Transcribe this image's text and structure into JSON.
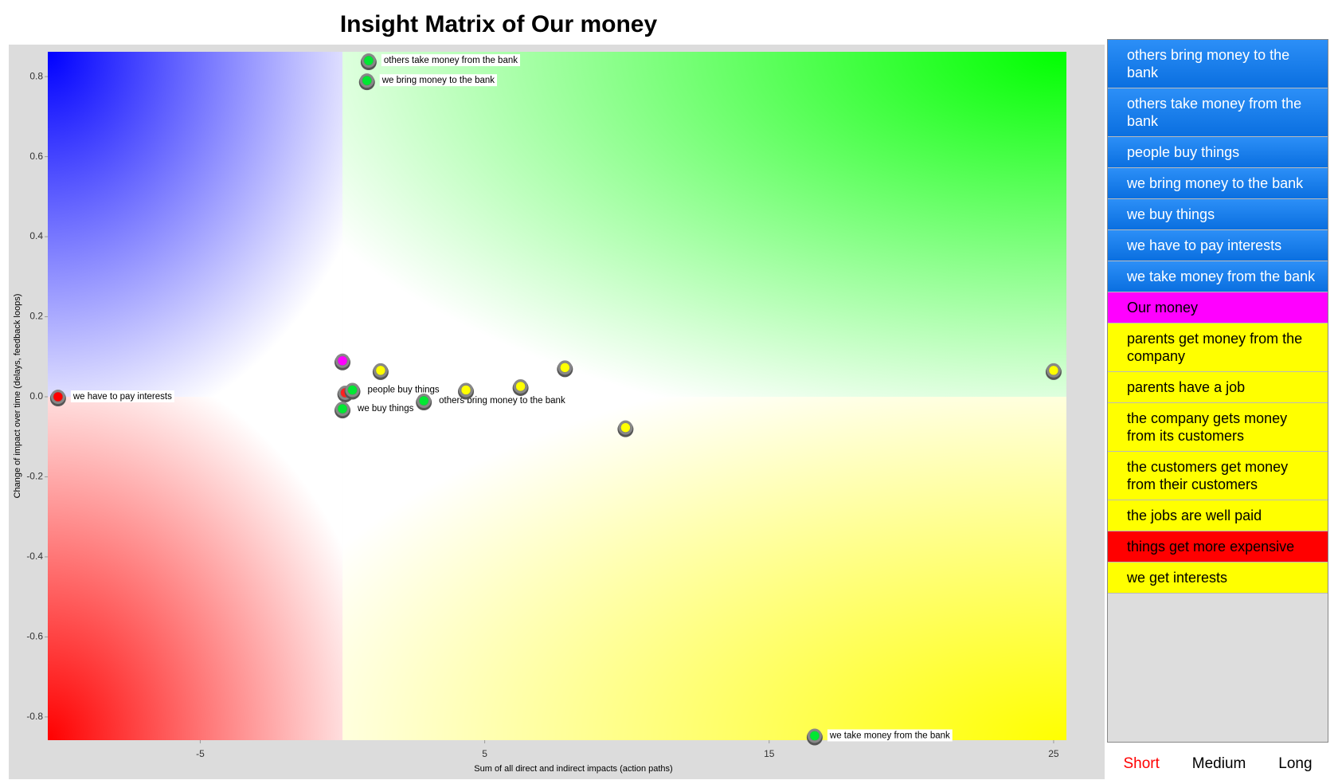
{
  "chart_data": {
    "type": "scatter",
    "title": "Insight Matrix of Our money",
    "xlabel": "Sum of all direct and indirect impacts (action paths)",
    "ylabel": "Change of impact over time (delays, feedback loops)",
    "xlim": [
      -10.36,
      25.45
    ],
    "ylim": [
      -0.858,
      0.862
    ],
    "xticks": [
      -5,
      5,
      15,
      25
    ],
    "yticks": [
      -0.8,
      -0.6,
      -0.4,
      -0.2,
      {
        "value": 0,
        "label": "0.0"
      },
      0.2,
      0.4,
      0.6,
      0.8
    ],
    "points": [
      {
        "x": -10,
        "y": 0,
        "color": "#ff0000",
        "label": "we have to pay interests"
      },
      {
        "x": 0,
        "y": 0.09,
        "color": "#ff00ff"
      },
      {
        "x": 0.1,
        "y": 0.01,
        "color": "#ff2020"
      },
      {
        "x": 0.35,
        "y": 0.017,
        "color": "#00e832",
        "label": "people buy things"
      },
      {
        "x": 0,
        "y": -0.03,
        "color": "#00e832",
        "label": "we buy things"
      },
      {
        "x": 0.92,
        "y": 0.84,
        "color": "#00e832",
        "label": "others take money from the bank"
      },
      {
        "x": 0.86,
        "y": 0.79,
        "color": "#00e832",
        "label": "we bring money to the bank"
      },
      {
        "x": 2.86,
        "y": -0.01,
        "color": "#00e832",
        "label": "others bring money to the bank"
      },
      {
        "x": 1.34,
        "y": 0.066,
        "color": "#ffff00"
      },
      {
        "x": 4.34,
        "y": 0.017,
        "color": "#ffff00"
      },
      {
        "x": 6.26,
        "y": 0.026,
        "color": "#ffff00"
      },
      {
        "x": 7.82,
        "y": 0.073,
        "color": "#ffff00"
      },
      {
        "x": 9.95,
        "y": -0.077,
        "color": "#ffff00"
      },
      {
        "x": 25,
        "y": 0.066,
        "color": "#ffff00"
      },
      {
        "x": 16.6,
        "y": -0.847,
        "color": "#00e832",
        "label": "we take money from the bank"
      }
    ]
  },
  "sidebar": {
    "items": [
      {
        "text": "others bring money to the bank",
        "color": "blue"
      },
      {
        "text": "others take money from the bank",
        "color": "blue"
      },
      {
        "text": "people buy things",
        "color": "blue"
      },
      {
        "text": "we bring money to the bank",
        "color": "blue"
      },
      {
        "text": "we buy things",
        "color": "blue"
      },
      {
        "text": "we have to pay interests",
        "color": "blue"
      },
      {
        "text": "we take money from the bank",
        "color": "blue"
      },
      {
        "text": "Our money",
        "color": "magenta"
      },
      {
        "text": "parents get money from the company",
        "color": "yellow"
      },
      {
        "text": "parents have a job",
        "color": "yellow"
      },
      {
        "text": "the company gets money from its customers",
        "color": "yellow"
      },
      {
        "text": "the customers get money from their customers",
        "color": "yellow"
      },
      {
        "text": "the jobs are well paid",
        "color": "yellow"
      },
      {
        "text": "things get more expensive",
        "color": "red"
      },
      {
        "text": "we get interests",
        "color": "yellow"
      }
    ],
    "buttons": [
      {
        "label": "Short",
        "active": true
      },
      {
        "label": "Medium",
        "active": false
      },
      {
        "label": "Long",
        "active": false
      }
    ]
  }
}
